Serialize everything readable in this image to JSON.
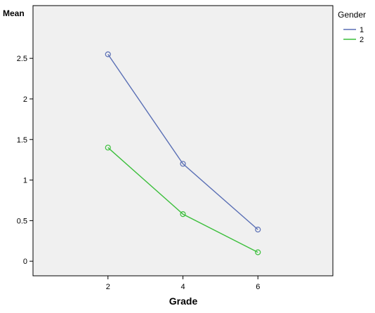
{
  "chart_data": {
    "type": "line",
    "x": [
      2,
      4,
      6
    ],
    "xlabel": "Grade",
    "ylabel": "Mean",
    "xlim": [
      0,
      8
    ],
    "ylim": [
      -0.18,
      3.15
    ],
    "x_ticks": [
      2,
      4,
      6
    ],
    "y_ticks": [
      0,
      0.5,
      1,
      1.5,
      2,
      2.5
    ],
    "y_tick_labels": [
      "0",
      "0.5",
      "1",
      "1.5",
      "2",
      "2.5"
    ],
    "grid": false,
    "legend": {
      "title": "Gender",
      "position": "right"
    },
    "series": [
      {
        "name": "1",
        "color": "#5a6fb5",
        "marker": "circle-open",
        "values": [
          2.55,
          1.2,
          0.39
        ]
      },
      {
        "name": "2",
        "color": "#3cbf3c",
        "marker": "circle-open",
        "values": [
          1.4,
          0.58,
          0.11
        ]
      }
    ],
    "plot_background": "#f0f0f0"
  }
}
